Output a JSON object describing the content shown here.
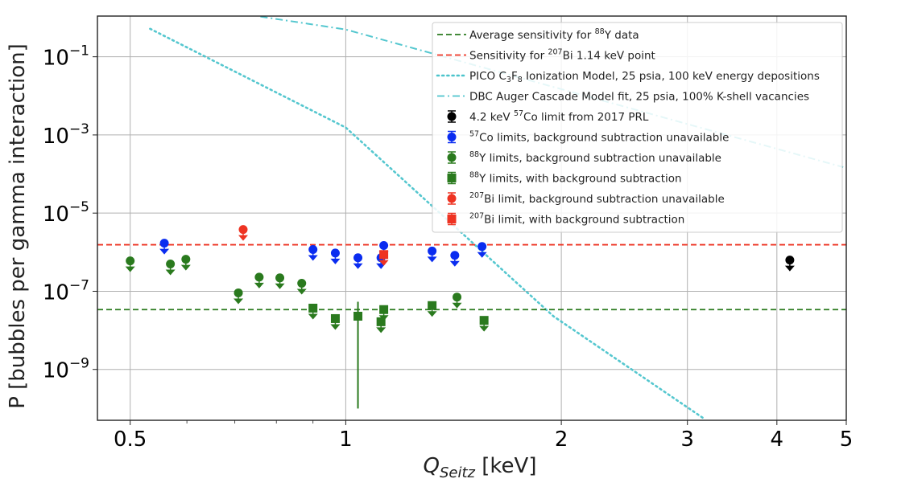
{
  "chart_data": {
    "type": "scatter",
    "title": "",
    "xlabel": "Q_Seitz [keV]",
    "xlabel_main": "Q",
    "xlabel_sub": "Seitz",
    "xlabel_unit": " [keV]",
    "ylabel": "P [bubbles per gamma interaction]",
    "xscale": "log",
    "yscale": "log",
    "xlim": [
      0.45,
      5.0
    ],
    "ylim": [
      5e-11,
      1.1
    ],
    "grid": true,
    "x_ticks": [
      {
        "value": 0.5,
        "label": "0.5"
      },
      {
        "value": 1,
        "label": "1"
      },
      {
        "value": 2,
        "label": "2"
      },
      {
        "value": 3,
        "label": "3"
      },
      {
        "value": 4,
        "label": "4"
      },
      {
        "value": 5,
        "label": "5"
      }
    ],
    "x_minor_ticks": [
      0.6,
      0.7,
      0.8,
      0.9
    ],
    "y_ticks": [
      {
        "value": 0.1,
        "base": "10",
        "exp": "−1"
      },
      {
        "value": 0.001,
        "base": "10",
        "exp": "−3"
      },
      {
        "value": 1e-05,
        "base": "10",
        "exp": "−5"
      },
      {
        "value": 1e-07,
        "base": "10",
        "exp": "−7"
      },
      {
        "value": 1e-09,
        "base": "10",
        "exp": "−9"
      }
    ],
    "legend_position": "top-right",
    "hlines": [
      {
        "name": "Average sensitivity for 88Y data",
        "y": 3.4e-08,
        "color": "#2a7a1e",
        "style": "dashed"
      },
      {
        "name": "Sensitivity for 207Bi 1.14 keV point",
        "y": 1.55e-06,
        "color": "#ee3322",
        "style": "dashed"
      }
    ],
    "curves": [
      {
        "name": "PICO C3F8 Ionization Model, 25 psia, 100 keV energy depositions",
        "color": "#4cc4cc",
        "style": "dotted",
        "x": [
          0.533,
          1.0,
          1.95,
          3.16
        ],
        "y": [
          0.52,
          0.00155,
          2.3e-08,
          5.6e-11
        ]
      },
      {
        "name": "DBC Auger Cascade Model fit, 25 psia, 100% K-shell vacancies",
        "color": "#4cc4cc",
        "style": "dashdot",
        "x": [
          0.76,
          1.0,
          4.95
        ],
        "y": [
          1.07,
          0.5,
          0.00015
        ]
      }
    ],
    "series": [
      {
        "name": "4.2 keV 57Co limit from 2017 PRL",
        "marker": "circle",
        "color": "#000000",
        "upper_limit": true,
        "points": [
          {
            "x": 4.17,
            "y": 6.3e-07
          }
        ]
      },
      {
        "name": "57Co limits, background subtraction unavailable",
        "marker": "circle",
        "color": "#0a2cf0",
        "upper_limit": true,
        "points": [
          {
            "x": 0.558,
            "y": 1.7e-06
          },
          {
            "x": 0.9,
            "y": 1.17e-06
          },
          {
            "x": 0.967,
            "y": 9.5e-07
          },
          {
            "x": 1.04,
            "y": 7.2e-07
          },
          {
            "x": 1.12,
            "y": 7.2e-07
          },
          {
            "x": 1.13,
            "y": 1.48e-06
          },
          {
            "x": 1.32,
            "y": 1.07e-06
          },
          {
            "x": 1.42,
            "y": 8.3e-07
          },
          {
            "x": 1.55,
            "y": 1.4e-06
          }
        ]
      },
      {
        "name": "88Y limits, background subtraction unavailable",
        "marker": "circle",
        "color": "#2a7a1e",
        "upper_limit": true,
        "points": [
          {
            "x": 0.5,
            "y": 6e-07
          },
          {
            "x": 0.569,
            "y": 5e-07
          },
          {
            "x": 0.598,
            "y": 6.6e-07
          },
          {
            "x": 0.708,
            "y": 9.1e-08
          },
          {
            "x": 0.757,
            "y": 2.3e-07
          },
          {
            "x": 0.809,
            "y": 2.2e-07
          },
          {
            "x": 0.868,
            "y": 1.6e-07
          },
          {
            "x": 1.43,
            "y": 7.1e-08
          }
        ]
      },
      {
        "name": "88Y limits, with background subtraction",
        "marker": "square",
        "color": "#2a7a1e",
        "upper_limit": true,
        "points": [
          {
            "x": 0.9,
            "y": 3.7e-08
          },
          {
            "x": 0.967,
            "y": 2e-08
          },
          {
            "x": 1.04,
            "y": 2.3e-08,
            "upper_limit": false,
            "err_low": 1e-10,
            "err_high": 5.4e-08
          },
          {
            "x": 1.12,
            "y": 1.66e-08
          },
          {
            "x": 1.13,
            "y": 3.4e-08
          },
          {
            "x": 1.32,
            "y": 4.3e-08
          },
          {
            "x": 1.56,
            "y": 1.8e-08
          }
        ]
      },
      {
        "name": "207Bi limit, background subtraction unavailable",
        "marker": "circle",
        "color": "#ee3322",
        "upper_limit": true,
        "points": [
          {
            "x": 0.719,
            "y": 3.8e-06
          }
        ]
      },
      {
        "name": "207Bi limit, with background subtraction",
        "marker": "square",
        "color": "#ee3322",
        "upper_limit": true,
        "points": [
          {
            "x": 1.13,
            "y": 8.7e-07
          }
        ]
      }
    ],
    "legend": [
      {
        "kind": "line",
        "style": "dashed",
        "color": "#2a7a1e",
        "pre": "Average sensitivity for ",
        "sup": "88",
        "post": "Y data"
      },
      {
        "kind": "line",
        "style": "dashed",
        "color": "#ee3322",
        "pre": "Sensitivity for ",
        "sup": "207",
        "post": "Bi 1.14 keV point"
      },
      {
        "kind": "line",
        "style": "dotted",
        "color": "#4cc4cc",
        "pre": "PICO C",
        "sub1": "3",
        "mid": "F",
        "sub2": "8",
        "post": " Ionization Model, 25 psia, 100 keV energy depositions"
      },
      {
        "kind": "line",
        "style": "dashdot",
        "color": "#4cc4cc",
        "pre": "DBC Auger Cascade Model fit, 25 psia, 100% K-shell vacancies"
      },
      {
        "kind": "marker",
        "marker": "circle",
        "color": "#000000",
        "pre": "4.2 keV ",
        "sup": "57",
        "post": "Co limit from 2017 PRL"
      },
      {
        "kind": "marker",
        "marker": "circle",
        "color": "#0a2cf0",
        "pre": "",
        "sup": "57",
        "post": "Co limits, background subtraction unavailable"
      },
      {
        "kind": "marker",
        "marker": "circle",
        "color": "#2a7a1e",
        "pre": "",
        "sup": "88",
        "post": "Y limits, background subtraction unavailable"
      },
      {
        "kind": "marker",
        "marker": "square",
        "color": "#2a7a1e",
        "pre": "",
        "sup": "88",
        "post": "Y limits, with background subtraction"
      },
      {
        "kind": "marker",
        "marker": "circle",
        "color": "#ee3322",
        "pre": "",
        "sup": "207",
        "post": "Bi limit, background subtraction unavailable"
      },
      {
        "kind": "marker",
        "marker": "square",
        "color": "#ee3322",
        "pre": "",
        "sup": "207",
        "post": "Bi limit, with background subtraction"
      }
    ]
  },
  "colors": {
    "grid": "#b0b0b0",
    "axis": "#222222",
    "legend_border": "#cccccc"
  }
}
